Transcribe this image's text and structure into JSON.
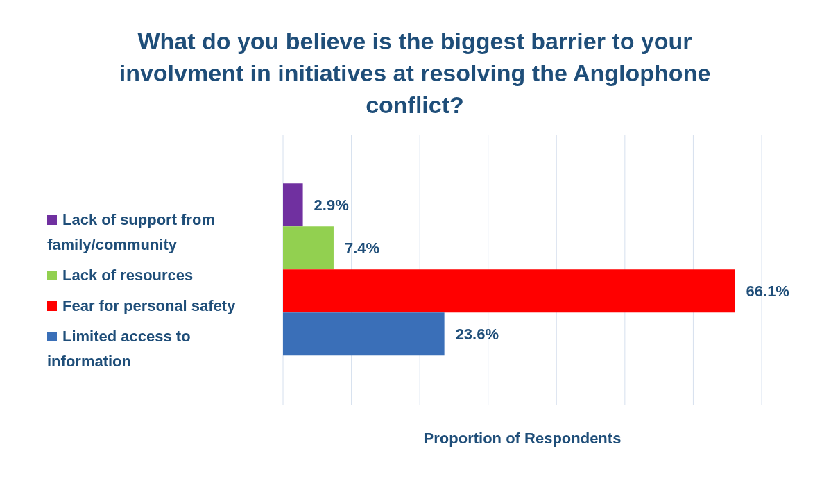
{
  "chart_data": {
    "type": "bar",
    "orientation": "horizontal",
    "title": "What do you believe is the biggest barrier to your involvment in initiatives at resolving the Anglophone conflict?",
    "xlabel": "Proportion of Respondents",
    "categories": [
      null
    ],
    "series": [
      {
        "name": "Lack of support from family/community",
        "color": "#7030a0",
        "values": [
          2.9
        ],
        "value_labels": [
          "2.9%"
        ]
      },
      {
        "name": "Lack of resources",
        "color": "#92d050",
        "values": [
          7.4
        ],
        "value_labels": [
          "7.4%"
        ]
      },
      {
        "name": "Fear for personal safety",
        "color": "#ff0000",
        "values": [
          66.1
        ],
        "value_labels": [
          "66.1%"
        ]
      },
      {
        "name": "Limited access to information",
        "color": "#3a6fb8",
        "values": [
          23.6
        ],
        "value_labels": [
          "23.6%"
        ]
      }
    ],
    "xlim": [
      0,
      70
    ],
    "xticks": [
      {
        "value": 0,
        "label": null
      },
      {
        "value": 10,
        "label": null
      },
      {
        "value": 20,
        "label": null
      },
      {
        "value": 30,
        "label": null
      },
      {
        "value": 40,
        "label": null
      },
      {
        "value": 50,
        "label": null
      },
      {
        "value": 60,
        "label": null
      },
      {
        "value": 70,
        "label": null
      }
    ],
    "grid": "x",
    "legend": "left"
  }
}
